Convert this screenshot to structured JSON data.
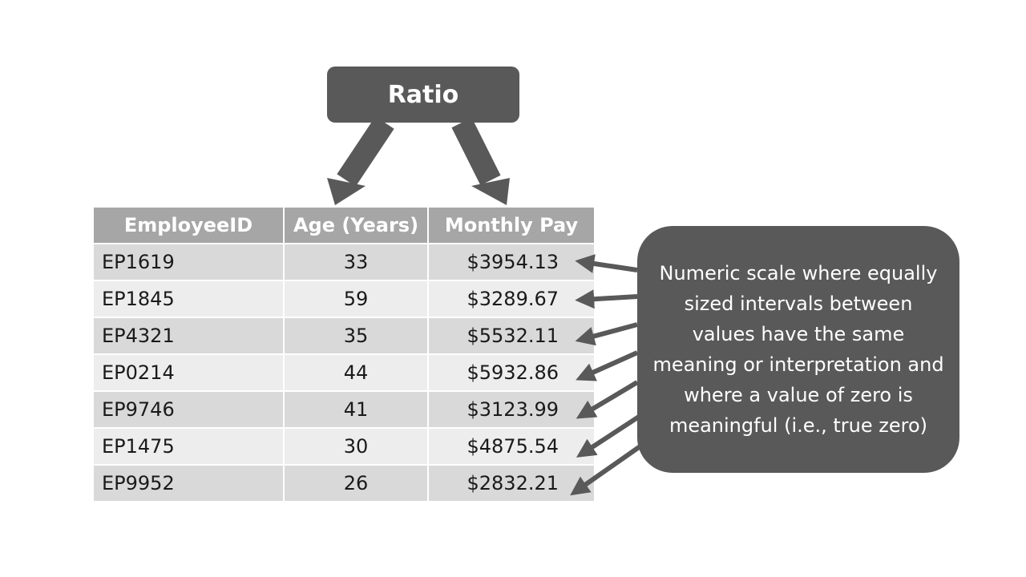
{
  "top_label": "Ratio",
  "table": {
    "headers": [
      "EmployeeID",
      "Age (Years)",
      "Monthly Pay"
    ],
    "rows": [
      [
        "EP1619",
        "33",
        "$3954.13"
      ],
      [
        "EP1845",
        "59",
        "$3289.67"
      ],
      [
        "EP4321",
        "35",
        "$5532.11"
      ],
      [
        "EP0214",
        "44",
        "$5932.86"
      ],
      [
        "EP9746",
        "41",
        "$3123.99"
      ],
      [
        "EP1475",
        "30",
        "$4875.54"
      ],
      [
        "EP9952",
        "26",
        "$2832.21"
      ]
    ]
  },
  "callout_text": "Numeric scale where equally sized intervals between values have the same meaning or interpretation and where a value of zero is meaningful (i.e., true zero)",
  "colors": {
    "box_fill": "#595959",
    "header_fill": "#a6a6a6",
    "row_odd": "#d9d9d9",
    "row_even": "#ededed"
  }
}
